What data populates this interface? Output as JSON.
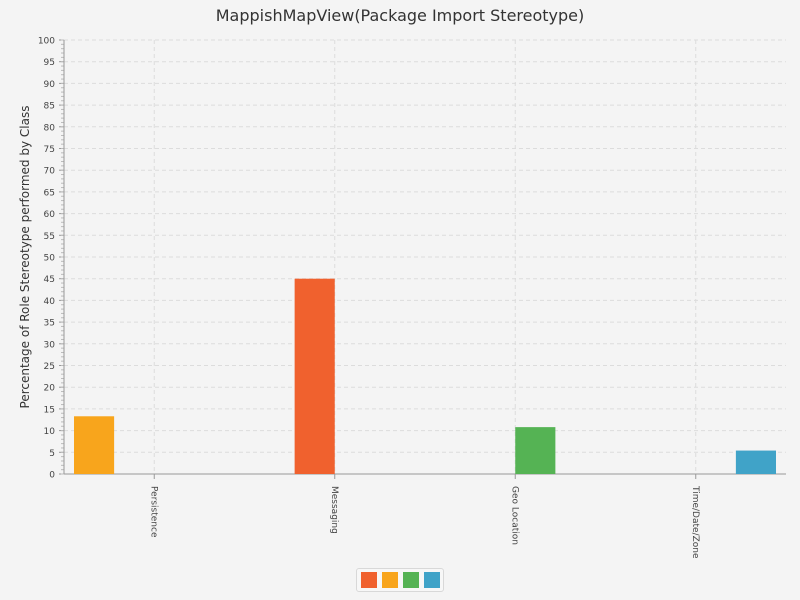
{
  "chart_data": {
    "type": "bar",
    "title": "MappishMapView(Package Import Stereotype)",
    "ylabel": "Percentage of Role Stereotype performed by Class",
    "xlabel": "",
    "categories": [
      "Persistence",
      "Messaging",
      "Geo Location",
      "Time/Date/Zone"
    ],
    "series": [
      {
        "color": "#f8a51c",
        "values": [
          13.3,
          0,
          0,
          0
        ]
      },
      {
        "color": "#f0612e",
        "values": [
          0,
          45,
          0,
          0
        ]
      },
      {
        "color": "#55b354",
        "values": [
          0,
          0,
          10.8,
          0
        ]
      },
      {
        "color": "#40a3c8",
        "values": [
          0,
          0,
          0,
          5.4
        ]
      }
    ],
    "ylim": [
      0,
      100
    ],
    "ytick_step": 5,
    "grid": true,
    "legend": {
      "placement": "bottom-center",
      "colors": [
        "#f0612e",
        "#f8a51c",
        "#55b354",
        "#40a3c8"
      ]
    }
  }
}
